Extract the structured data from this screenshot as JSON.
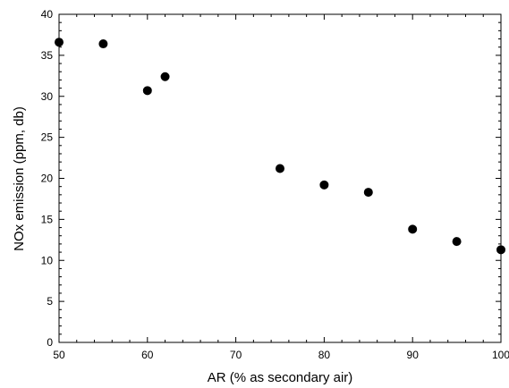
{
  "chart_data": {
    "type": "scatter",
    "title": "",
    "xlabel": "AR (% as secondary air)",
    "ylabel": "NOx emission (ppm, db)",
    "xlim": [
      50,
      100
    ],
    "ylim": [
      0,
      40
    ],
    "x_ticks": [
      50,
      60,
      70,
      80,
      90,
      100
    ],
    "y_ticks": [
      0,
      5,
      10,
      15,
      20,
      25,
      30,
      35,
      40
    ],
    "grid": false,
    "legend": "none",
    "marker_color": "#000000",
    "series": [
      {
        "x": [
          50,
          55,
          60,
          62,
          75,
          80,
          85,
          90,
          95,
          100
        ],
        "y": [
          36.6,
          36.4,
          30.7,
          32.4,
          21.2,
          19.2,
          18.3,
          13.8,
          12.3,
          11.3
        ]
      }
    ]
  }
}
